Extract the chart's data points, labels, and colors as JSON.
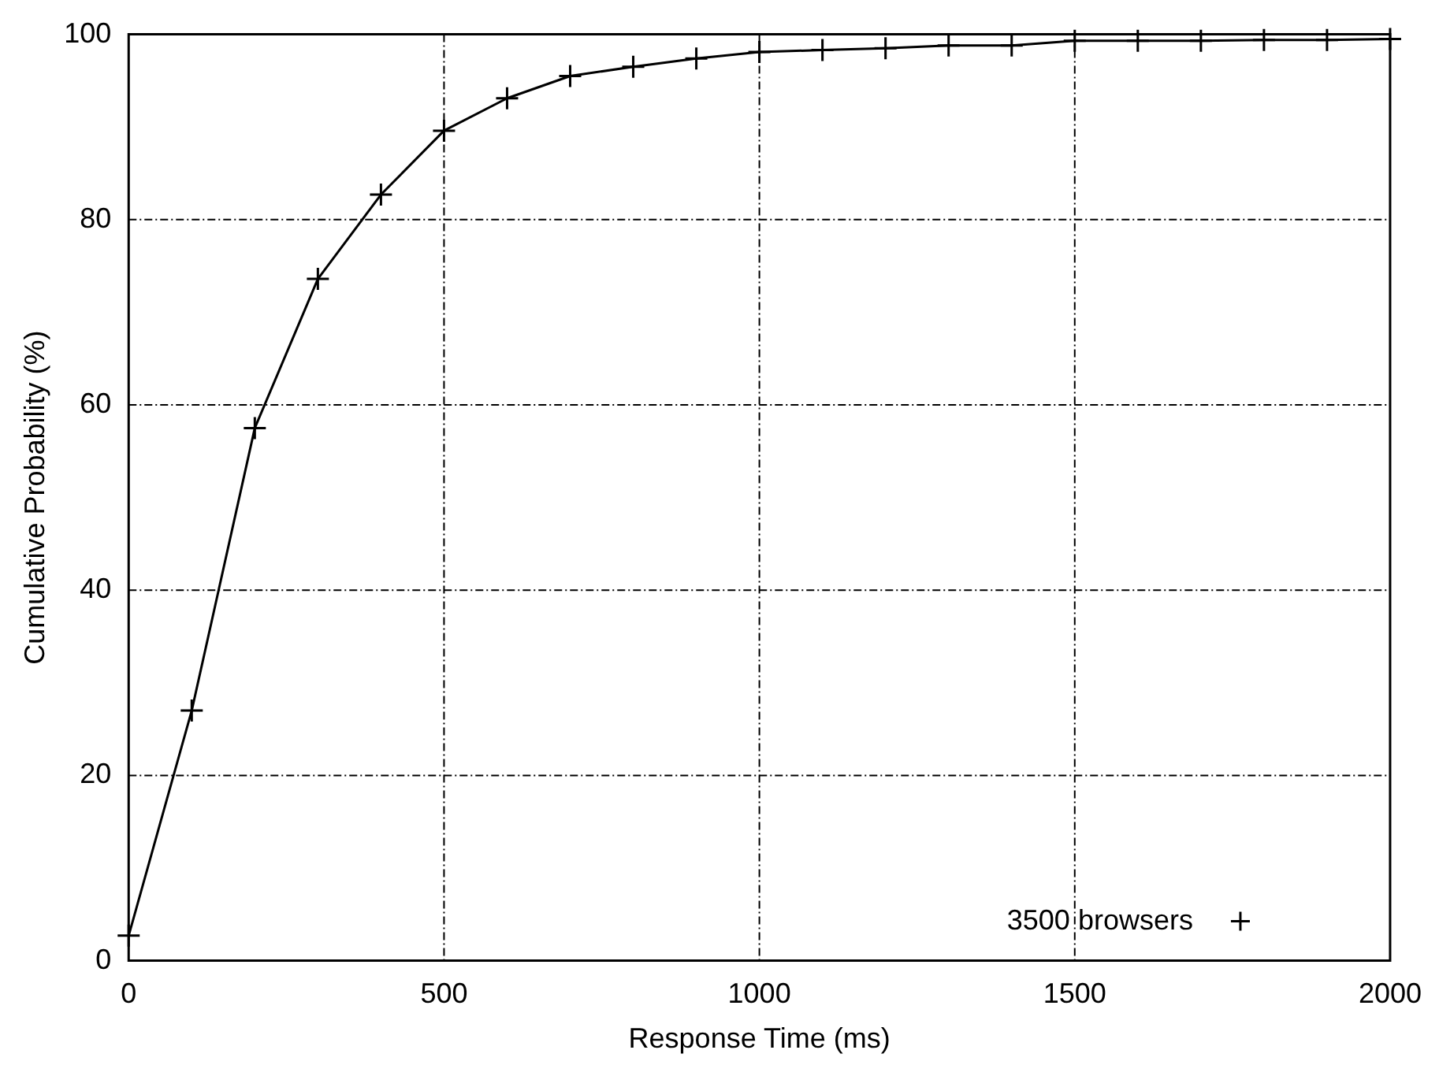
{
  "chart_data": {
    "type": "line",
    "xlabel": "Response Time (ms)",
    "ylabel": "Cumulative Probability (%)",
    "x": [
      0,
      100,
      200,
      300,
      400,
      500,
      600,
      700,
      800,
      900,
      1000,
      1100,
      1200,
      1300,
      1400,
      1500,
      1600,
      1700,
      1800,
      1900,
      2000
    ],
    "series": [
      {
        "name": "3500 browsers",
        "color": "#000000",
        "values": [
          2.7,
          27,
          57.5,
          73.6,
          82.7,
          89.6,
          93.1,
          95.5,
          96.5,
          97.4,
          98.1,
          98.3,
          98.5,
          98.8,
          98.8,
          99.3,
          99.3,
          99.3,
          99.4,
          99.4,
          99.5
        ]
      }
    ],
    "xlim": [
      0,
      2000
    ],
    "xticks": [
      0,
      500,
      1000,
      1500,
      2000
    ],
    "ylim": [
      0,
      100
    ],
    "yticks": [
      0,
      20,
      40,
      60,
      80,
      100
    ],
    "grid": true,
    "legend": "bottom right",
    "marker": "cross",
    "line_style": "solid"
  }
}
